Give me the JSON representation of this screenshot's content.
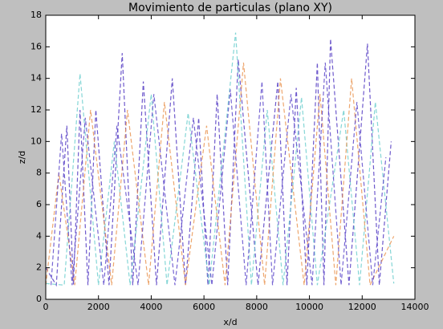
{
  "chart_data": {
    "type": "line",
    "title": "Movimiento de particulas (plano XY)",
    "x_label": "x/d",
    "y_label": "z/d",
    "xlim": [
      0,
      14000
    ],
    "ylim": [
      0,
      18
    ],
    "xticks": [
      0,
      2000,
      4000,
      6000,
      8000,
      10000,
      12000,
      14000
    ],
    "yticks": [
      0,
      2,
      4,
      6,
      8,
      10,
      12,
      14,
      16,
      18
    ],
    "grid": false,
    "series": [
      {
        "color": "#4a2fbf",
        "x": [
          0,
          400,
          800,
          1050,
          1300,
          1600,
          1900,
          2400,
          2900,
          3300,
          3700,
          4200,
          4800,
          5300,
          5800,
          6150,
          6500,
          6900,
          7300,
          8050,
          8800,
          9150,
          9500,
          9900,
          10300,
          10550,
          10800,
          11500,
          12200,
          12650,
          13100
        ],
        "values": [
          2,
          0.9,
          11,
          0.9,
          12,
          0.9,
          12,
          0.9,
          15.6,
          0.9,
          13.8,
          0.9,
          14,
          0.9,
          11.5,
          0.9,
          13,
          0.9,
          15.2,
          0.9,
          13.8,
          0.9,
          13.4,
          0.9,
          15,
          0.9,
          16.5,
          0.9,
          16.2,
          0.9,
          10
        ]
      },
      {
        "color": "#66cccc",
        "x": [
          0,
          700,
          1300,
          2000,
          2600,
          3200,
          4000,
          4600,
          5400,
          6200,
          7200,
          7800,
          8400,
          9000,
          9700,
          10300,
          11300,
          11900,
          12500,
          13200
        ],
        "values": [
          1,
          0.9,
          14.3,
          0.9,
          10,
          0.9,
          13,
          0.9,
          11.8,
          0.9,
          16.9,
          0.9,
          12,
          0.9,
          12.8,
          0.9,
          12,
          0.9,
          12.5,
          1
        ]
      },
      {
        "color": "#e8904a",
        "x": [
          0,
          500,
          1100,
          1700,
          2500,
          3100,
          3900,
          4500,
          5300,
          6100,
          6800,
          7500,
          8300,
          8900,
          9800,
          10400,
          11000,
          11600,
          12300,
          13200
        ],
        "values": [
          0.9,
          8,
          0.9,
          12,
          0.9,
          12,
          0.9,
          12.5,
          0.9,
          11,
          0.9,
          15,
          0.9,
          14,
          0.9,
          13,
          0.9,
          14,
          0.9,
          4
        ]
      },
      {
        "color": "#5540c8",
        "x": [
          200,
          600,
          1000,
          1500,
          2200,
          2700,
          3500,
          4100,
          4900,
          5600,
          6300,
          7000,
          7600,
          8200,
          8600,
          9300,
          10100,
          10600,
          11200,
          11800,
          12400,
          12900
        ],
        "values": [
          0.9,
          10.5,
          0.9,
          11.5,
          0.9,
          11,
          0.9,
          13,
          0.9,
          11.5,
          0.9,
          13.3,
          0.9,
          13.8,
          0.9,
          13,
          0.9,
          15,
          0.9,
          12.5,
          0.9,
          9
        ]
      }
    ]
  }
}
